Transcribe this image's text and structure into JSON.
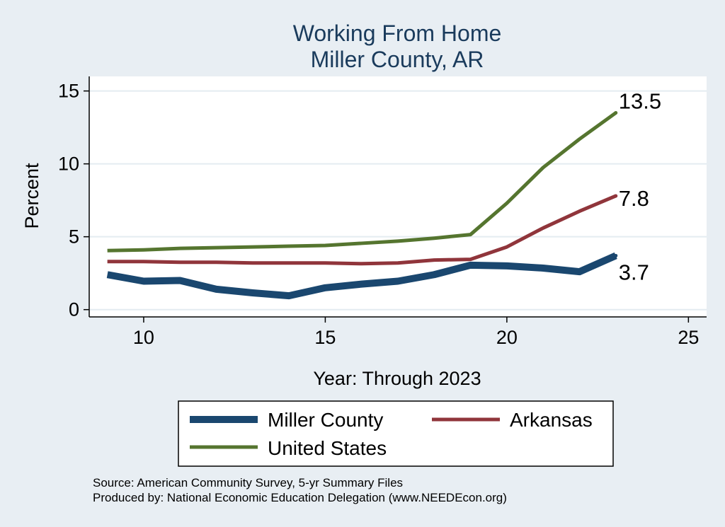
{
  "chart_data": {
    "type": "line",
    "title": [
      "Working From Home",
      "Miller County, AR"
    ],
    "xlabel": "Year: Through 2023",
    "ylabel": "Percent",
    "xlim": [
      8.5,
      25.5
    ],
    "ylim": [
      -0.5,
      16
    ],
    "xticks": [
      10,
      15,
      20,
      25
    ],
    "yticks": [
      0,
      5,
      10,
      15
    ],
    "grid": "horizontal",
    "legend_position": "bottom",
    "series": [
      {
        "name": "Miller County",
        "color": "#1a476f",
        "x": [
          9,
          10,
          11,
          12,
          13,
          14,
          15,
          16,
          17,
          18,
          19,
          20,
          21,
          22,
          23
        ],
        "y": [
          2.4,
          1.95,
          2.0,
          1.4,
          1.15,
          0.95,
          1.5,
          1.75,
          1.95,
          2.4,
          3.05,
          3.0,
          2.85,
          2.6,
          3.7
        ],
        "end_label": "3.7"
      },
      {
        "name": "Arkansas",
        "color": "#90353b",
        "x": [
          9,
          10,
          11,
          12,
          13,
          14,
          15,
          16,
          17,
          18,
          19,
          20,
          21,
          22,
          23
        ],
        "y": [
          3.3,
          3.3,
          3.25,
          3.25,
          3.2,
          3.2,
          3.2,
          3.15,
          3.2,
          3.4,
          3.45,
          4.3,
          5.6,
          6.75,
          7.8
        ],
        "end_label": "7.8"
      },
      {
        "name": "United States",
        "color": "#55752f",
        "x": [
          9,
          10,
          11,
          12,
          13,
          14,
          15,
          16,
          17,
          18,
          19,
          20,
          21,
          22,
          23
        ],
        "y": [
          4.05,
          4.1,
          4.2,
          4.25,
          4.3,
          4.35,
          4.4,
          4.55,
          4.7,
          4.9,
          5.15,
          7.3,
          9.75,
          11.7,
          13.5
        ],
        "end_label": "13.5"
      }
    ]
  },
  "notes": [
    "Source: American Community Survey, 5-yr Summary Files",
    "Produced by: National Economic Education Delegation (www.NEEDEcon.org)"
  ]
}
